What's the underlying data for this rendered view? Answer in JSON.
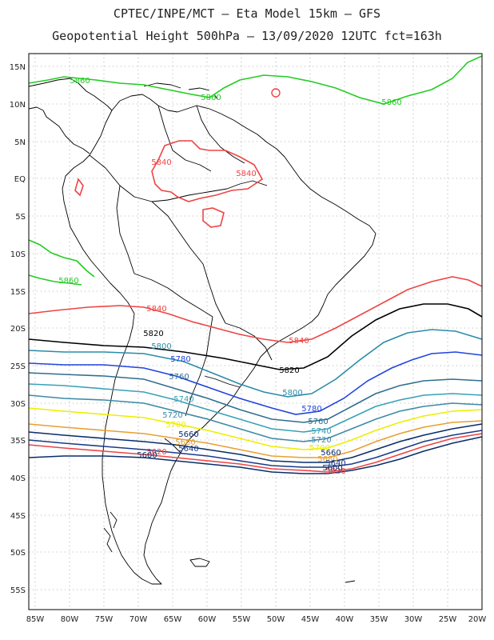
{
  "title": {
    "line1": "CPTEC/INPE/MCT –  Eta Model 15km – GFS",
    "line2": "Geopotential Height 500hPa – 13/09/2020 12UTC fct=163h"
  },
  "axes": {
    "lat_labels": [
      "15N",
      "10N",
      "5N",
      "EQ",
      "5S",
      "10S",
      "15S",
      "20S",
      "25S",
      "30S",
      "35S",
      "40S",
      "45S",
      "50S",
      "55S"
    ],
    "lon_labels": [
      "85W",
      "80W",
      "75W",
      "70W",
      "65W",
      "60W",
      "55W",
      "50W",
      "45W",
      "40W",
      "35W",
      "30W",
      "25W",
      "20W"
    ],
    "lat_range": [
      16,
      -58
    ],
    "lon_range": [
      -86,
      -20
    ]
  },
  "colors": {
    "frame": "#000000",
    "grid": "#9a9a9a",
    "coast": "#000000"
  },
  "contours": [
    {
      "value": 5860,
      "color": "#22cc22",
      "labels": [
        "5860",
        "5860",
        "5860",
        "5860"
      ]
    },
    {
      "value": 5840,
      "color": "#ee4444",
      "labels": [
        "5840",
        "5840",
        "5840",
        "5840"
      ]
    },
    {
      "value": 5820,
      "color": "#000000",
      "labels": [
        "5820",
        "5820"
      ]
    },
    {
      "value": 5800,
      "color": "#2a8ca8",
      "labels": [
        "5800",
        "5800"
      ]
    },
    {
      "value": 5780,
      "color": "#2244dd",
      "labels": [
        "5780",
        "5780"
      ]
    },
    {
      "value": 5760,
      "color": "#2f6f8f",
      "labels": [
        "5760",
        "5760"
      ]
    },
    {
      "value": 5740,
      "color": "#3aa0b8",
      "labels": [
        "5740",
        "5740"
      ]
    },
    {
      "value": 5720,
      "color": "#3d8aa6",
      "labels": [
        "5720",
        "5720"
      ]
    },
    {
      "value": 5700,
      "color": "#eeee00",
      "labels": [
        "5700",
        "5700"
      ]
    },
    {
      "value": 5680,
      "color": "#e8a030",
      "labels": [
        "5680",
        "5680"
      ]
    },
    {
      "value": 5660,
      "color": "#0a2d6a",
      "labels": [
        "5660",
        "5660"
      ]
    },
    {
      "value": 5640,
      "color": "#1a3a8a",
      "labels": [
        "5640",
        "5640"
      ]
    },
    {
      "value": 5620,
      "color": "#ee4444",
      "labels": [
        "5620",
        "5620"
      ]
    },
    {
      "value": 5600,
      "color": "#0a2d6a",
      "labels": [
        "5600",
        "5600"
      ]
    }
  ]
}
